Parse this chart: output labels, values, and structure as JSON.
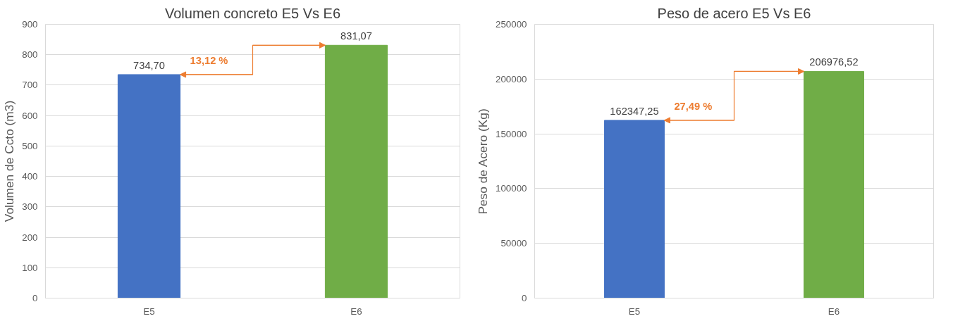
{
  "chart_data": [
    {
      "type": "bar",
      "title": "Volumen concreto E5 Vs E6",
      "ylabel": "Volumen de Ccto (m3)",
      "categories": [
        "E5",
        "E6"
      ],
      "values": [
        734.7,
        831.07
      ],
      "colors": [
        "#4472c4",
        "#70ad47"
      ],
      "value_labels": [
        "734,70",
        "831,07"
      ],
      "ylim": [
        0,
        900
      ],
      "yticks": [
        0,
        100,
        200,
        300,
        400,
        500,
        600,
        700,
        800,
        900
      ],
      "grid": "y",
      "annotations": [
        "13,12 %"
      ]
    },
    {
      "type": "bar",
      "title": "Peso de acero E5 Vs E6",
      "ylabel": "Peso de Acero (Kg)",
      "categories": [
        "E5",
        "E6"
      ],
      "values": [
        162347.25,
        206976.52
      ],
      "colors": [
        "#4472c4",
        "#70ad47"
      ],
      "value_labels": [
        "162347,25",
        "206976,52"
      ],
      "ylim": [
        0,
        250000
      ],
      "yticks": [
        0,
        50000,
        100000,
        150000,
        200000,
        250000
      ],
      "grid": "y",
      "annotations": [
        "27,49 %"
      ]
    }
  ]
}
